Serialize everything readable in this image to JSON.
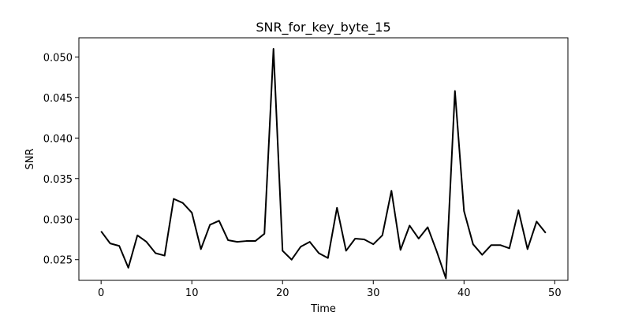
{
  "chart_data": {
    "type": "line",
    "title": "SNR_for_key_byte_15",
    "xlabel": "Time",
    "ylabel": "SNR",
    "xlim": [
      -2.45,
      51.45
    ],
    "ylim": [
      0.02245,
      0.05236
    ],
    "xticks": [
      0,
      10,
      20,
      30,
      40,
      50
    ],
    "xtick_labels": [
      "0",
      "10",
      "20",
      "30",
      "40",
      "50"
    ],
    "yticks": [
      0.025,
      0.03,
      0.035,
      0.04,
      0.045,
      0.05
    ],
    "ytick_labels": [
      "0.025",
      "0.030",
      "0.035",
      "0.040",
      "0.045",
      "0.050"
    ],
    "grid": false,
    "series": [
      {
        "color": "#000000",
        "x": [
          0,
          1,
          2,
          3,
          4,
          5,
          6,
          7,
          8,
          9,
          10,
          11,
          12,
          13,
          14,
          15,
          16,
          17,
          18,
          19,
          20,
          21,
          22,
          23,
          24,
          25,
          26,
          27,
          28,
          29,
          30,
          31,
          32,
          33,
          34,
          35,
          36,
          37,
          38,
          39,
          40,
          41,
          42,
          43,
          44,
          45,
          46,
          47,
          48,
          49
        ],
        "y": [
          0.0285,
          0.027,
          0.0267,
          0.024,
          0.028,
          0.0272,
          0.0258,
          0.0255,
          0.0325,
          0.032,
          0.0308,
          0.0263,
          0.0293,
          0.0298,
          0.0274,
          0.0272,
          0.0273,
          0.0273,
          0.0282,
          0.051,
          0.0261,
          0.025,
          0.0266,
          0.0272,
          0.0258,
          0.0252,
          0.0314,
          0.0261,
          0.0276,
          0.0275,
          0.0269,
          0.028,
          0.0335,
          0.0262,
          0.0292,
          0.0276,
          0.029,
          0.026,
          0.0227,
          0.0458,
          0.031,
          0.0269,
          0.0256,
          0.0268,
          0.0268,
          0.0264,
          0.0311,
          0.0263,
          0.0297,
          0.0283
        ]
      }
    ]
  }
}
